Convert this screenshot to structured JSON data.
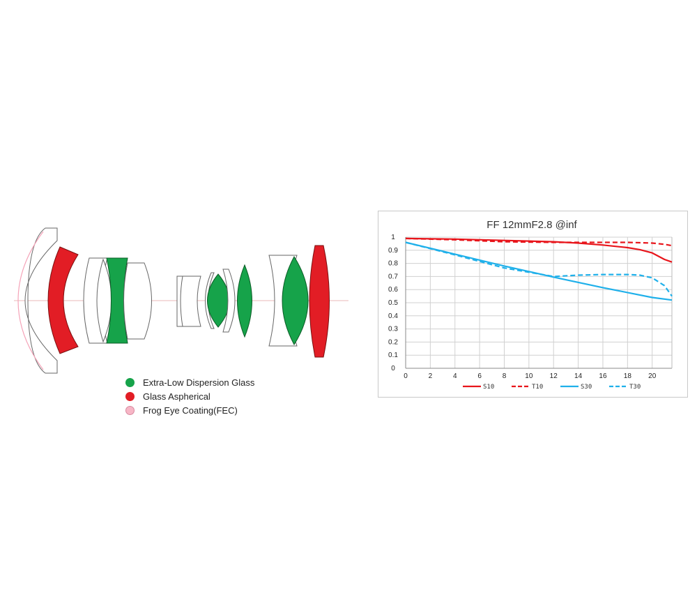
{
  "lens_diagram": {
    "colors": {
      "ed_glass": "#16a34a",
      "aspherical": "#e21d25",
      "fec": "#f7b6c6",
      "outline": "#555555"
    },
    "legend": [
      {
        "label": "Extra-Low Dispersion Glass",
        "color": "#16a34a",
        "icon": "green-dot-icon"
      },
      {
        "label": "Glass Aspherical",
        "color": "#e21d25",
        "icon": "red-dot-icon"
      },
      {
        "label": "Frog Eye Coating(FEC)",
        "color": "#f7b6c6",
        "icon": "pink-dot-icon"
      }
    ]
  },
  "chart_data": {
    "type": "line",
    "title": "FF 12mmF2.8 @inf",
    "xlabel": "",
    "ylabel": "",
    "xlim": [
      0,
      21.6
    ],
    "ylim": [
      0,
      1
    ],
    "x_ticks": [
      0,
      2,
      4,
      6,
      8,
      10,
      12,
      14,
      16,
      18,
      20
    ],
    "y_ticks": [
      0,
      0.1,
      0.2,
      0.3,
      0.4,
      0.5,
      0.6,
      0.7,
      0.8,
      0.9,
      1
    ],
    "y_tick_labels": [
      "0",
      "0.1",
      "0.2",
      "0.3",
      "0.4",
      "0.5",
      "0.6",
      "0.7",
      "0.8",
      "0.9",
      "1"
    ],
    "grid": true,
    "legend_position": "bottom",
    "series": [
      {
        "name": "S10",
        "color": "#e8151b",
        "dashed": false,
        "x": [
          0,
          4,
          8,
          12,
          14,
          16,
          18,
          19,
          20,
          21,
          21.6
        ],
        "y": [
          0.99,
          0.985,
          0.975,
          0.965,
          0.955,
          0.94,
          0.92,
          0.905,
          0.88,
          0.83,
          0.81
        ]
      },
      {
        "name": "T10",
        "color": "#e8151b",
        "dashed": true,
        "x": [
          0,
          4,
          8,
          12,
          16,
          18,
          20,
          21,
          21.6
        ],
        "y": [
          0.99,
          0.98,
          0.965,
          0.96,
          0.96,
          0.96,
          0.955,
          0.945,
          0.935
        ]
      },
      {
        "name": "S30",
        "color": "#1fb0ea",
        "dashed": false,
        "x": [
          0,
          4,
          8,
          12,
          16,
          20,
          21.6
        ],
        "y": [
          0.96,
          0.87,
          0.78,
          0.695,
          0.615,
          0.54,
          0.52
        ]
      },
      {
        "name": "T30",
        "color": "#1fb0ea",
        "dashed": true,
        "x": [
          0,
          4,
          8,
          12,
          14,
          16,
          18,
          19,
          20,
          21,
          21.6
        ],
        "y": [
          0.96,
          0.865,
          0.765,
          0.7,
          0.71,
          0.715,
          0.715,
          0.71,
          0.69,
          0.63,
          0.55
        ]
      }
    ]
  }
}
